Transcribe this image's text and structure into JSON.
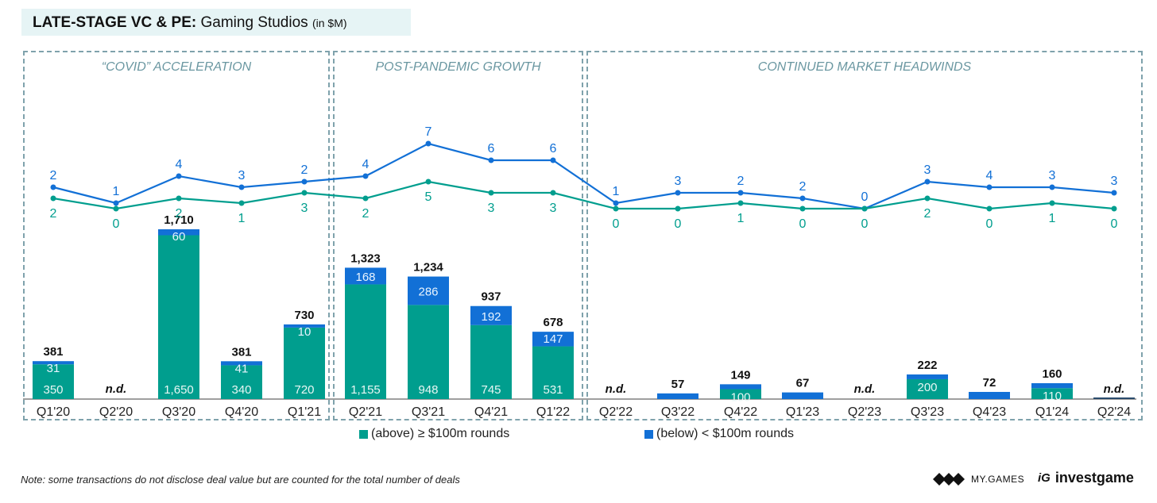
{
  "header": {
    "title_bold": "LATE-STAGE VC & PE:",
    "title_rest": "Gaming Studios",
    "title_unit": "(in $M)"
  },
  "panels": [
    {
      "label": "“COVID” ACCELERATION"
    },
    {
      "label": "POST-PANDEMIC GROWTH"
    },
    {
      "label": "CONTINUED MARKET HEADWINDS"
    }
  ],
  "colors": {
    "above": "#009e8e",
    "below": "#1270d6",
    "panel_border": "#7fa2ac",
    "panel_label": "#6a97a1"
  },
  "legend": {
    "above": "(above) ≥ $100m rounds",
    "below": "(below) < $100m rounds"
  },
  "note": "Note: some transactions do not disclose deal value but are counted for the total number of deals",
  "logos": {
    "mygames": "MY.GAMES",
    "investgame": "investgame"
  },
  "chart_data": {
    "type": "bar",
    "title": "LATE-STAGE VC & PE: Gaming Studios (in $M)",
    "xlabel": "",
    "ylabel": "",
    "categories": [
      "Q1'20",
      "Q2'20",
      "Q3'20",
      "Q4'20",
      "Q1'21",
      "Q2'21",
      "Q3'21",
      "Q4'21",
      "Q1'22",
      "Q2'22",
      "Q3'22",
      "Q4'22",
      "Q1'23",
      "Q2'23",
      "Q3'23",
      "Q4'23",
      "Q1'24",
      "Q2'24"
    ],
    "series": [
      {
        "name": "(above) ≥ $100m rounds",
        "values": [
          350,
          null,
          1650,
          340,
          720,
          1155,
          948,
          745,
          531,
          null,
          0,
          100,
          0,
          null,
          200,
          0,
          110,
          null
        ]
      },
      {
        "name": "(below) < $100m rounds",
        "values": [
          31,
          null,
          60,
          41,
          10,
          168,
          286,
          192,
          147,
          null,
          57,
          49,
          67,
          null,
          22,
          72,
          50,
          null
        ]
      }
    ],
    "totals": [
      "381",
      "n.d.",
      "1,710",
      "381",
      "730",
      "1,323",
      "1,234",
      "937",
      "678",
      "n.d.",
      "57",
      "149",
      "67",
      "n.d.",
      "222",
      "72",
      "160",
      "n.d."
    ],
    "stack_labels_above": [
      "350",
      "",
      "1,650",
      "340",
      "720",
      "1,155",
      "948",
      "745",
      "531",
      "",
      "",
      "100",
      "",
      "",
      "200",
      "",
      "110",
      ""
    ],
    "stack_labels_below": [
      "31",
      "",
      "60",
      "41",
      "10",
      "168",
      "286",
      "192",
      "147",
      "",
      "",
      "",
      "",
      "",
      "",
      "",
      "",
      ""
    ],
    "deal_counts": [
      {
        "name": "Deals (below) < $100m rounds",
        "values": [
          2,
          1,
          4,
          3,
          2,
          4,
          7,
          6,
          6,
          1,
          3,
          2,
          2,
          0,
          3,
          4,
          3,
          3
        ]
      },
      {
        "name": "Deals (above) ≥ $100m rounds",
        "values": [
          2,
          0,
          2,
          1,
          3,
          2,
          5,
          3,
          3,
          0,
          0,
          1,
          0,
          0,
          2,
          0,
          1,
          0
        ]
      }
    ],
    "ylim": [
      0,
      1800
    ],
    "grid": false,
    "legend_position": "bottom"
  }
}
